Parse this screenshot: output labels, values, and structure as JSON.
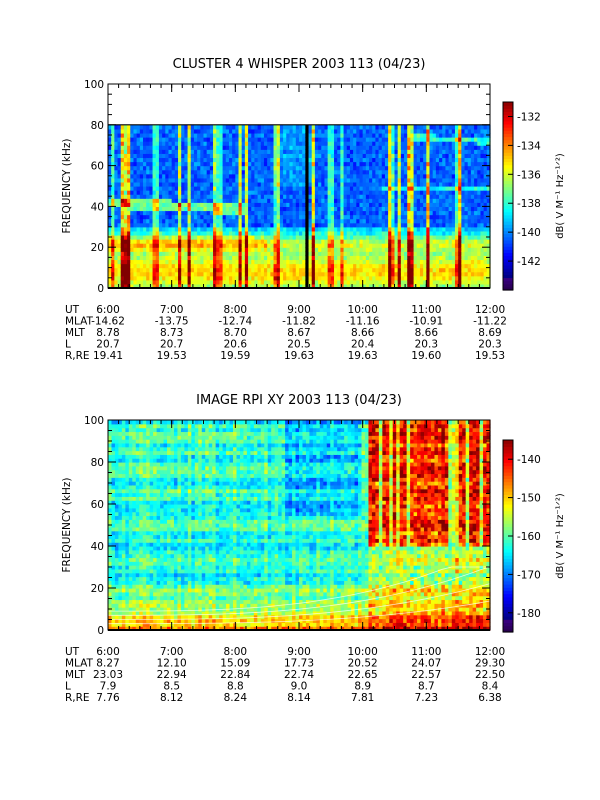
{
  "chart_data": [
    {
      "type": "heatmap",
      "title": "CLUSTER 4 WHISPER 2003 113 (04/23)",
      "ylabel": "FREQUENCY (kHz)",
      "ylim": [
        0,
        100
      ],
      "data_ylim": [
        0,
        80
      ],
      "yticks": [
        "0",
        "20",
        "40",
        "60",
        "80",
        "100"
      ],
      "xlim": [
        "6:00",
        "12:00"
      ],
      "xticks": [
        "6:00",
        "7:00",
        "8:00",
        "9:00",
        "10:00",
        "11:00",
        "12:00"
      ],
      "colorbar": {
        "label": "dB( V M⁻¹ Hz⁻¹ᐟ²)",
        "range": [
          -144,
          -131
        ],
        "ticks": [
          "-132",
          "-134",
          "-136",
          "-138",
          "-140",
          "-142"
        ],
        "tick_values": [
          -132,
          -134,
          -136,
          -138,
          -140,
          -142
        ]
      },
      "features": {
        "background_level_db": -139.5,
        "band_upper_kHz": [
          38,
          44
        ],
        "band_lower_kHz": [
          15,
          28
        ],
        "band_upper_time": [
          "6:00",
          "8:10"
        ],
        "strong_vertical_bursts": [
          "6:45",
          "7:45",
          "9:30",
          "10:25",
          "11:30"
        ],
        "data_gaps": [
          "9:03",
          "9:08"
        ]
      },
      "ephemeris": {
        "labels": [
          "UT",
          "MLAT",
          "MLT",
          "L",
          "R,RE"
        ],
        "rows": [
          [
            "6:00",
            "7:00",
            "8:00",
            "9:00",
            "10:00",
            "11:00",
            "12:00"
          ],
          [
            "-14.62",
            "-13.75",
            "-12.74",
            "-11.82",
            "-11.16",
            "-10.91",
            "-11.22"
          ],
          [
            "8.78",
            "8.73",
            "8.70",
            "8.67",
            "8.66",
            "8.66",
            "8.69"
          ],
          [
            "20.7",
            "20.7",
            "20.6",
            "20.5",
            "20.4",
            "20.3",
            "20.3"
          ],
          [
            "19.41",
            "19.53",
            "19.59",
            "19.63",
            "19.63",
            "19.60",
            "19.53"
          ]
        ]
      }
    },
    {
      "type": "heatmap",
      "title": "IMAGE RPI XY 2003 113 (04/23)",
      "ylabel": "FREQUENCY (kHz)",
      "ylim": [
        0,
        100
      ],
      "data_ylim": [
        0,
        100
      ],
      "yticks": [
        "0",
        "20",
        "40",
        "60",
        "80",
        "100"
      ],
      "xlim": [
        "6:00",
        "12:00"
      ],
      "xticks": [
        "6:00",
        "7:00",
        "8:00",
        "9:00",
        "10:00",
        "11:00",
        "12:00"
      ],
      "colorbar": {
        "label": "dB( V M⁻¹ Hz⁻¹ᐟ²)",
        "range": [
          -185,
          -135
        ],
        "ticks": [
          "-140",
          "-150",
          "-160",
          "-170",
          "-180"
        ],
        "tick_values": [
          -140,
          -150,
          -160,
          -170,
          -180
        ]
      },
      "features": {
        "background_level_db": -163,
        "strong_region_time": [
          "10:05",
          "12:00"
        ],
        "strong_region_kHz": [
          40,
          100
        ],
        "low_band_kHz": [
          0,
          20
        ],
        "resonance_curves_kHz_at_10_and_12": [
          [
            3,
            6
          ],
          [
            3,
            24
          ]
        ]
      },
      "ephemeris": {
        "labels": [
          "UT",
          "MLAT",
          "MLT",
          "L",
          "R,RE"
        ],
        "rows": [
          [
            "6:00",
            "7:00",
            "8:00",
            "9:00",
            "10:00",
            "11:00",
            "12:00"
          ],
          [
            "8.27",
            "12.10",
            "15.09",
            "17.73",
            "20.52",
            "24.07",
            "29.30"
          ],
          [
            "23.03",
            "22.94",
            "22.84",
            "22.74",
            "22.65",
            "22.57",
            "22.50"
          ],
          [
            "7.9",
            "8.5",
            "8.8",
            "9.0",
            "8.9",
            "8.7",
            "8.4"
          ],
          [
            "7.76",
            "8.12",
            "8.24",
            "8.14",
            "7.81",
            "7.23",
            "6.38"
          ]
        ]
      }
    }
  ]
}
